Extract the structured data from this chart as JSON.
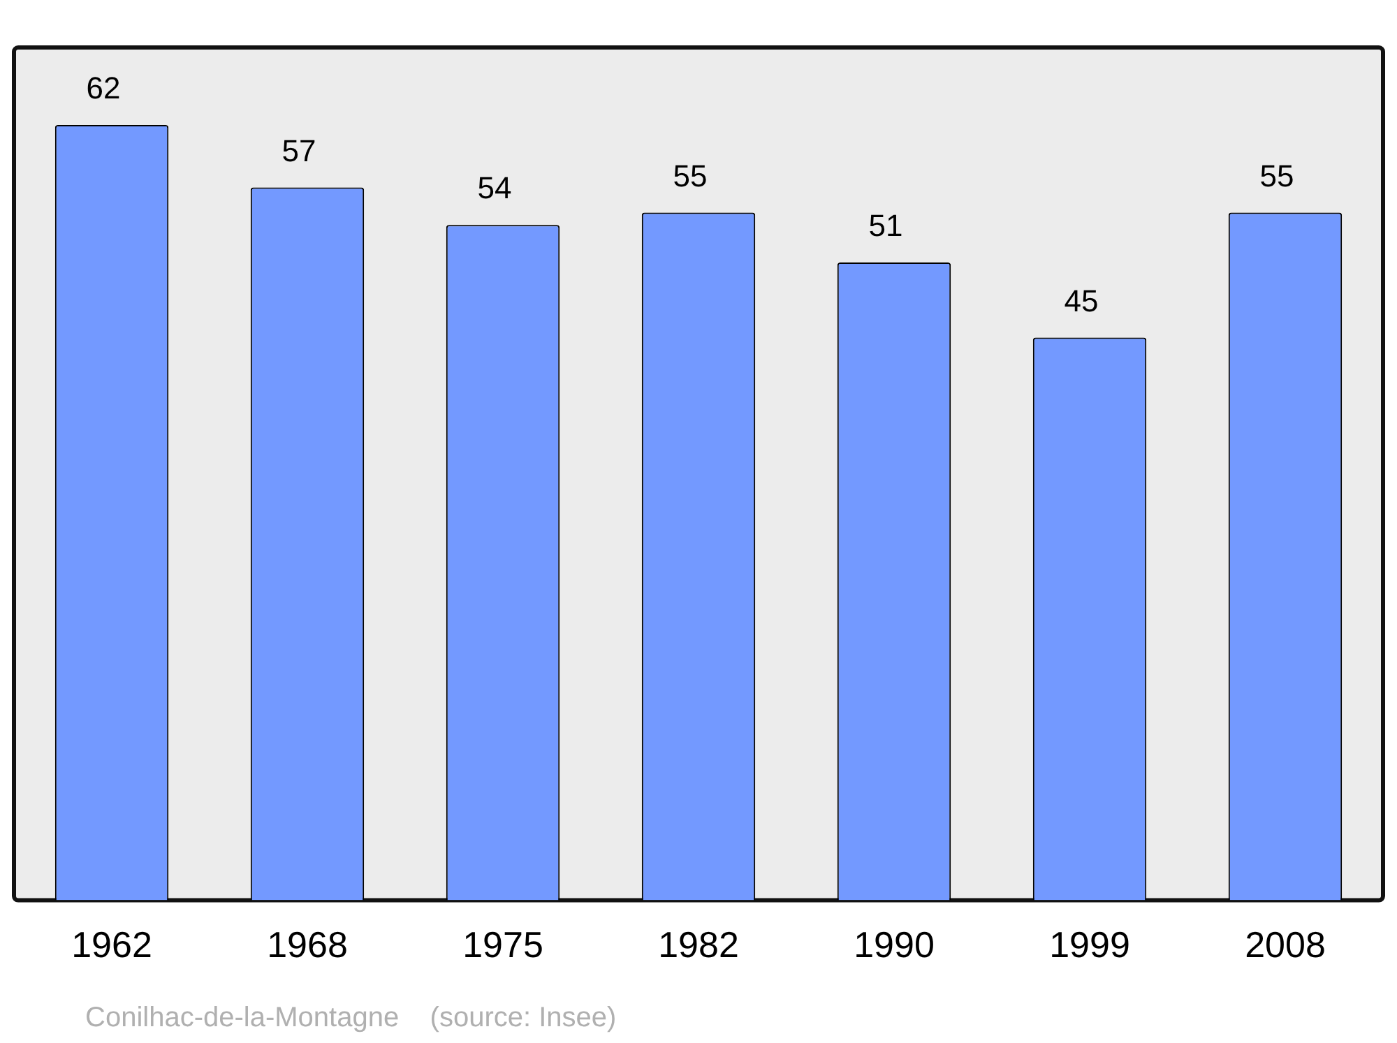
{
  "chart_data": {
    "type": "bar",
    "categories": [
      "1962",
      "1968",
      "1975",
      "1982",
      "1990",
      "1999",
      "2008"
    ],
    "values": [
      62,
      57,
      54,
      55,
      51,
      45,
      55
    ],
    "color": "#7399ff",
    "data_labels": true,
    "grid": false,
    "legend": false,
    "annotations": [
      "Conilhac-de-la-Montagne    (source: Insee)"
    ]
  }
}
